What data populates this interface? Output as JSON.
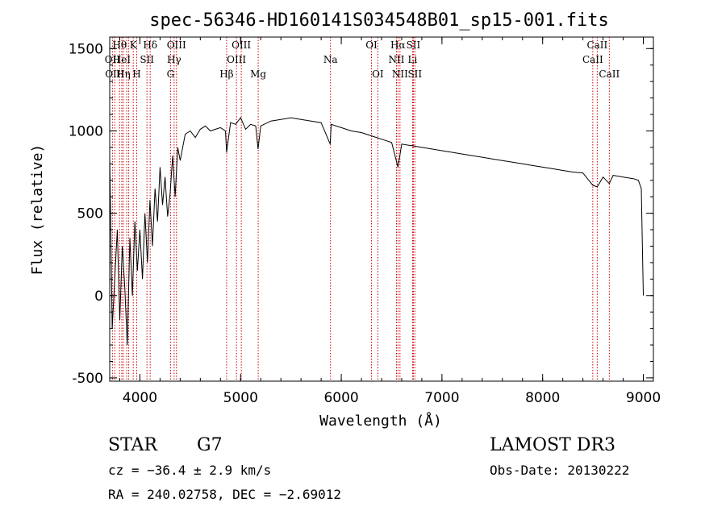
{
  "chart_data": {
    "type": "line",
    "title": "spec-56346-HD160141S034548B01_sp15-001.fits",
    "xlabel": "Wavelength (Å)",
    "ylabel": "Flux (relative)",
    "xlim": [
      3700,
      9100
    ],
    "ylim": [
      -520,
      1570
    ],
    "xticks": [
      4000,
      5000,
      6000,
      7000,
      8000,
      9000
    ],
    "yticks": [
      -500,
      0,
      500,
      1000,
      1500
    ],
    "grid": false,
    "series": [
      {
        "x": [
          3700,
          3725,
          3750,
          3775,
          3800,
          3825,
          3850,
          3875,
          3900,
          3925,
          3950,
          3975,
          4000,
          4025,
          4050,
          4075,
          4100,
          4125,
          4150,
          4175,
          4200,
          4225,
          4250,
          4275,
          4300,
          4325,
          4350,
          4375,
          4400,
          4450,
          4500,
          4550,
          4600,
          4650,
          4700,
          4750,
          4800,
          4850,
          4861,
          4900,
          4950,
          5000,
          5050,
          5100,
          5150,
          5173,
          5200,
          5300,
          5400,
          5500,
          5600,
          5700,
          5800,
          5890,
          5900,
          6000,
          6100,
          6200,
          6300,
          6400,
          6500,
          6563,
          6600,
          6700,
          6800,
          6900,
          7000,
          7100,
          7200,
          7300,
          7400,
          7500,
          7600,
          7700,
          7800,
          7900,
          8000,
          8100,
          8200,
          8300,
          8400,
          8498,
          8542,
          8600,
          8662,
          8700,
          8800,
          8900,
          8950,
          8980,
          9000
        ],
        "y": [
          850,
          -200,
          100,
          400,
          -150,
          300,
          50,
          -300,
          350,
          0,
          450,
          150,
          400,
          100,
          500,
          200,
          580,
          300,
          650,
          450,
          780,
          550,
          720,
          480,
          620,
          850,
          600,
          900,
          820,
          980,
          1000,
          960,
          1010,
          1030,
          1000,
          1010,
          1020,
          1000,
          870,
          1050,
          1040,
          1080,
          1010,
          1040,
          1030,
          890,
          1030,
          1060,
          1070,
          1080,
          1070,
          1060,
          1050,
          920,
          1040,
          1020,
          1000,
          990,
          970,
          950,
          930,
          780,
          920,
          910,
          900,
          890,
          880,
          870,
          860,
          850,
          840,
          830,
          820,
          810,
          800,
          790,
          780,
          770,
          760,
          750,
          745,
          670,
          660,
          720,
          680,
          730,
          720,
          710,
          700,
          650,
          0
        ]
      }
    ],
    "line_markers": [
      {
        "wl": 3727,
        "label": "OII",
        "row": 1
      },
      {
        "wl": 3750,
        "label": "OIII",
        "row": 2
      },
      {
        "wl": 3798,
        "label": "Hθ",
        "row": 0
      },
      {
        "wl": 3820,
        "label": "HeI",
        "row": 1
      },
      {
        "wl": 3835,
        "label": "Hη",
        "row": 2
      },
      {
        "wl": 3869,
        "label": "",
        "row": 0
      },
      {
        "wl": 3889,
        "label": "",
        "row": 0
      },
      {
        "wl": 3934,
        "label": "K",
        "row": 0
      },
      {
        "wl": 3968,
        "label": "H",
        "row": 2
      },
      {
        "wl": 4070,
        "label": "SII",
        "row": 1
      },
      {
        "wl": 4102,
        "label": "Hδ",
        "row": 0
      },
      {
        "wl": 4304,
        "label": "G",
        "row": 2
      },
      {
        "wl": 4340,
        "label": "Hγ",
        "row": 1
      },
      {
        "wl": 4363,
        "label": "OIII",
        "row": 0
      },
      {
        "wl": 4861,
        "label": "Hβ",
        "row": 2
      },
      {
        "wl": 4959,
        "label": "OIII",
        "row": 1
      },
      {
        "wl": 5007,
        "label": "OIII",
        "row": 0
      },
      {
        "wl": 5175,
        "label": "Mg",
        "row": 2
      },
      {
        "wl": 5893,
        "label": "Na",
        "row": 1
      },
      {
        "wl": 6300,
        "label": "OI",
        "row": 0
      },
      {
        "wl": 6363,
        "label": "OI",
        "row": 2
      },
      {
        "wl": 6548,
        "label": "NII",
        "row": 1
      },
      {
        "wl": 6563,
        "label": "Hα",
        "row": 0
      },
      {
        "wl": 6583,
        "label": "NII",
        "row": 2
      },
      {
        "wl": 6708,
        "label": "Li",
        "row": 1
      },
      {
        "wl": 6716,
        "label": "SII",
        "row": 0
      },
      {
        "wl": 6731,
        "label": "SII",
        "row": 2
      },
      {
        "wl": 8498,
        "label": "CaII",
        "row": 1
      },
      {
        "wl": 8542,
        "label": "CaII",
        "row": 0
      },
      {
        "wl": 8662,
        "label": "CaII",
        "row": 2
      }
    ]
  },
  "info": {
    "object_type": "STAR",
    "subclass": "G7",
    "survey": "LAMOST DR3",
    "cz": "cz = −36.4 ± 2.9 km/s",
    "obs_date": "Obs-Date: 20130222",
    "coords": "RA = 240.02758, DEC =  −2.69012"
  },
  "colors": {
    "spectrum": "#000000",
    "marker": "#cc0000",
    "axes": "#000000",
    "background": "#ffffff"
  }
}
